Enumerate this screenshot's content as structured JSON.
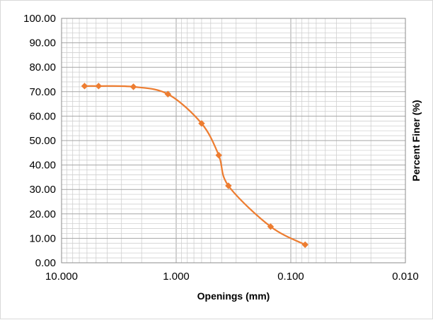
{
  "chart_data": {
    "type": "scatter",
    "title": "",
    "xlabel": "Openings (mm)",
    "ylabel": "Percent Finer (%)",
    "x_scale": "log",
    "x_reversed": true,
    "xlim": [
      10,
      0.01
    ],
    "ylim": [
      0,
      100
    ],
    "x_ticks": [
      10,
      1,
      0.1,
      0.01
    ],
    "x_tick_labels": [
      "10.000",
      "1.000",
      "0.100",
      "0.010"
    ],
    "y_ticks": [
      0,
      10,
      20,
      30,
      40,
      50,
      60,
      70,
      80,
      90,
      100
    ],
    "y_tick_labels": [
      "0.00",
      "10.00",
      "20.00",
      "30.00",
      "40.00",
      "50.00",
      "60.00",
      "70.00",
      "80.00",
      "90.00",
      "100.00"
    ],
    "grid": true,
    "minor_grid": true,
    "legend": "none",
    "series": [
      {
        "x": [
          6.3,
          4.75,
          2.36,
          1.18,
          0.6,
          0.425,
          0.35,
          0.15,
          0.075
        ],
        "y": [
          72.3,
          72.3,
          72.0,
          69.0,
          57.0,
          44.0,
          31.5,
          14.8,
          7.4
        ],
        "color": "#ED7D31",
        "marker": "diamond",
        "line": "smooth"
      }
    ]
  }
}
